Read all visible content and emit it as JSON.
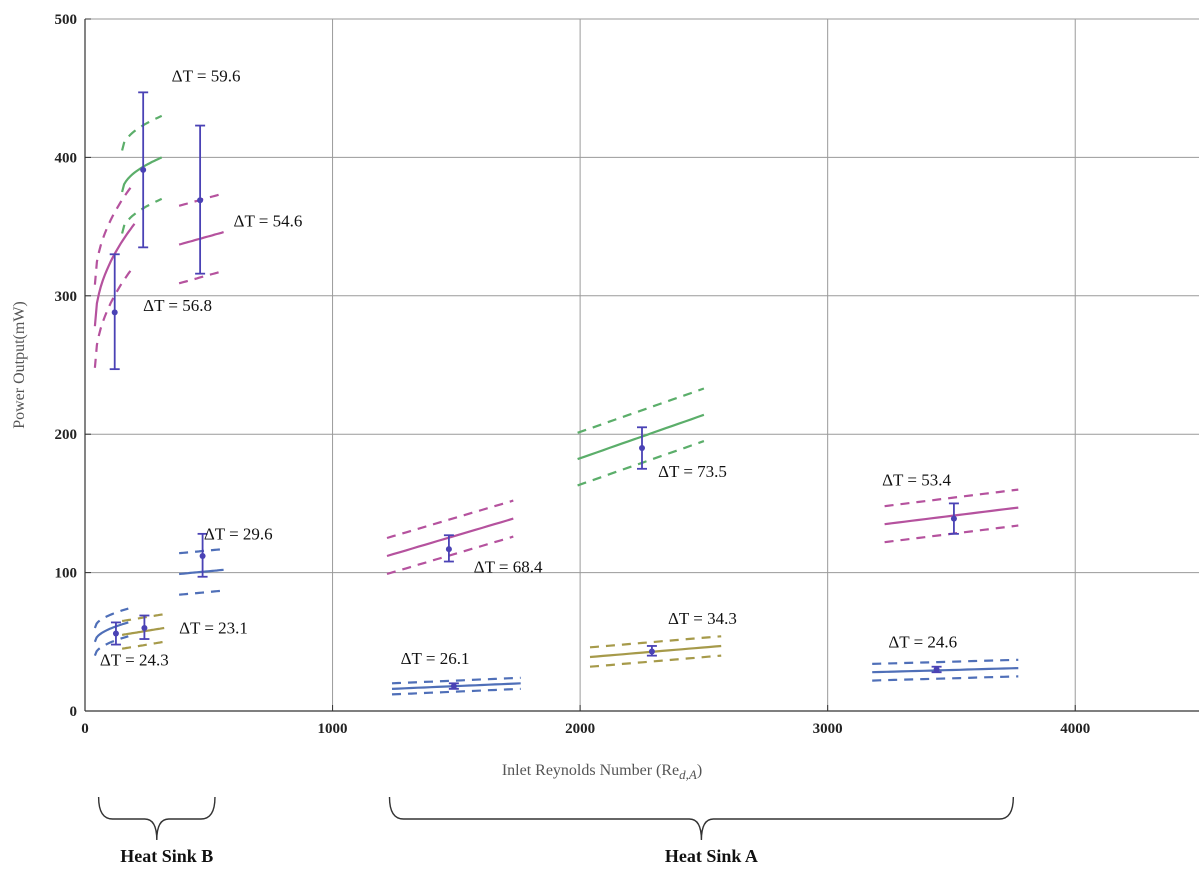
{
  "colors": {
    "green": "#5BAE6A",
    "magenta": "#B5529E",
    "blue": "#4F6FB8",
    "olive": "#A69A4A",
    "point": "#4A42B5",
    "grid": "#9A9A9A"
  },
  "chart_data": {
    "type": "line",
    "title": "",
    "xlabel": "Inlet Reynolds Number (Re",
    "xlabel_sub": "d,A",
    "xlabel_close": ")",
    "ylabel": "Power Output(mW)",
    "xlim": [
      0,
      4500
    ],
    "ylim": [
      0,
      500
    ],
    "xticks": [
      0,
      1000,
      2000,
      3000,
      4000
    ],
    "yticks": [
      0,
      100,
      200,
      300,
      400,
      500
    ],
    "grid": true,
    "series": [
      {
        "color": "magenta",
        "x": [
          40,
          200
        ],
        "y": [
          278,
          352
        ],
        "band": [
          30,
          30
        ],
        "curve": true
      },
      {
        "color": "green",
        "x": [
          150,
          310
        ],
        "y": [
          375,
          400
        ],
        "band": [
          30,
          30
        ],
        "curve": true
      },
      {
        "color": "magenta",
        "x": [
          380,
          560
        ],
        "y": [
          337,
          346
        ],
        "band": [
          28,
          28
        ]
      },
      {
        "color": "blue",
        "x": [
          40,
          175
        ],
        "y": [
          50,
          64
        ],
        "band": [
          10,
          10
        ],
        "curve": true
      },
      {
        "color": "olive",
        "x": [
          150,
          320
        ],
        "y": [
          55,
          60
        ],
        "band": [
          10,
          10
        ]
      },
      {
        "color": "blue",
        "x": [
          380,
          560
        ],
        "y": [
          99,
          102
        ],
        "band": [
          15,
          15
        ]
      },
      {
        "color": "magenta",
        "x": [
          1220,
          1730
        ],
        "y": [
          112,
          139
        ],
        "band": [
          13,
          13
        ]
      },
      {
        "color": "blue",
        "x": [
          1240,
          1760
        ],
        "y": [
          16,
          20
        ],
        "band": [
          4,
          4
        ]
      },
      {
        "color": "green",
        "x": [
          1990,
          2500
        ],
        "y": [
          182,
          214
        ],
        "band": [
          19,
          19
        ]
      },
      {
        "color": "olive",
        "x": [
          2040,
          2570
        ],
        "y": [
          39,
          47
        ],
        "band": [
          7,
          7
        ]
      },
      {
        "color": "magenta",
        "x": [
          3230,
          3770
        ],
        "y": [
          135,
          147
        ],
        "band": [
          13,
          13
        ]
      },
      {
        "color": "blue",
        "x": [
          3180,
          3770
        ],
        "y": [
          28,
          31
        ],
        "band": [
          6,
          6
        ]
      }
    ],
    "points": [
      {
        "x": 120,
        "y": 288,
        "lo": 247,
        "hi": 330
      },
      {
        "x": 235,
        "y": 391,
        "lo": 335,
        "hi": 447
      },
      {
        "x": 465,
        "y": 369,
        "lo": 316,
        "hi": 423
      },
      {
        "x": 125,
        "y": 56,
        "lo": 48,
        "hi": 64
      },
      {
        "x": 240,
        "y": 60,
        "lo": 52,
        "hi": 69
      },
      {
        "x": 475,
        "y": 112,
        "lo": 97,
        "hi": 128
      },
      {
        "x": 1470,
        "y": 117,
        "lo": 108,
        "hi": 127
      },
      {
        "x": 1490,
        "y": 18,
        "lo": 16,
        "hi": 20
      },
      {
        "x": 2250,
        "y": 190,
        "lo": 175,
        "hi": 205
      },
      {
        "x": 2290,
        "y": 43,
        "lo": 40,
        "hi": 47
      },
      {
        "x": 3510,
        "y": 139,
        "lo": 128,
        "hi": 150
      },
      {
        "x": 3440,
        "y": 30,
        "lo": 28,
        "hi": 32
      }
    ],
    "annotations": [
      {
        "text": "ΔT = 59.6",
        "x": 350,
        "y": 455
      },
      {
        "text": "ΔT = 54.6",
        "x": 600,
        "y": 350
      },
      {
        "text": "ΔT = 56.8",
        "x": 235,
        "y": 289
      },
      {
        "text": "ΔT = 29.6",
        "x": 480,
        "y": 124
      },
      {
        "text": "ΔT = 23.1",
        "x": 380,
        "y": 56
      },
      {
        "text": "ΔT = 24.3",
        "x": 60,
        "y": 33
      },
      {
        "text": "ΔT = 26.1",
        "x": 1275,
        "y": 34
      },
      {
        "text": "ΔT = 68.4",
        "x": 1570,
        "y": 100
      },
      {
        "text": "ΔT = 73.5",
        "x": 2315,
        "y": 169
      },
      {
        "text": "ΔT = 34.3",
        "x": 2355,
        "y": 63
      },
      {
        "text": "ΔT = 53.4",
        "x": 3220,
        "y": 163
      },
      {
        "text": "ΔT = 24.6",
        "x": 3245,
        "y": 46
      }
    ],
    "groups": [
      {
        "label": "Heat Sink B",
        "x0": 55,
        "x1": 525
      },
      {
        "label": "Heat Sink A",
        "x0": 1230,
        "x1": 3750
      }
    ]
  }
}
